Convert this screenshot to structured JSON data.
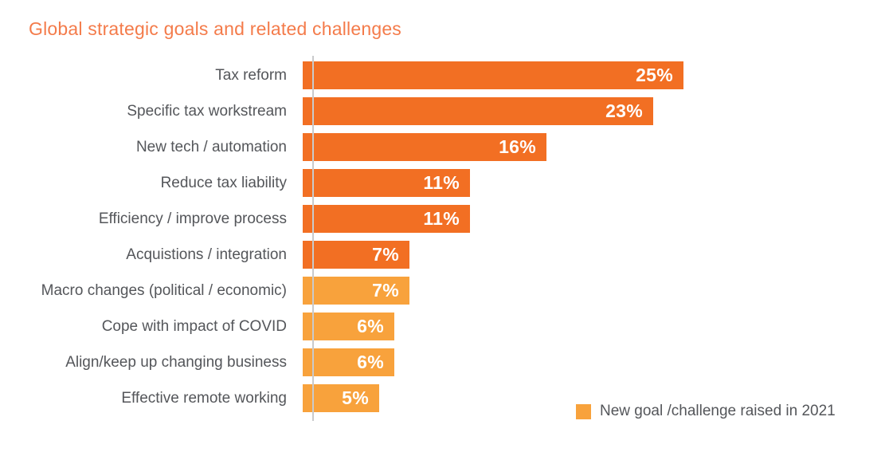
{
  "title": "Global strategic goals and related challenges",
  "title_color": "#F47B4A",
  "legend": {
    "label": "New goal /challenge raised in 2021",
    "swatch_color": "#F8A23C"
  },
  "chart_data": {
    "type": "bar",
    "orientation": "horizontal",
    "title": "Global strategic goals and related challenges",
    "categories": [
      "Tax reform",
      "Specific tax workstream",
      "New tech / automation",
      "Reduce tax liability",
      "Efficiency / improve process",
      "Acquistions / integration",
      "Macro changes (political / economic)",
      "Cope with impact of COVID",
      "Align/keep up changing business",
      "Effective remote working"
    ],
    "values": [
      25,
      23,
      16,
      11,
      11,
      7,
      7,
      6,
      6,
      5
    ],
    "value_labels": [
      "25%",
      "23%",
      "16%",
      "11%",
      "11%",
      "7%",
      "7%",
      "6%",
      "6%",
      "5%"
    ],
    "new_goal_2021": [
      false,
      false,
      false,
      false,
      false,
      false,
      true,
      true,
      true,
      true
    ],
    "xlim": [
      0,
      25
    ],
    "grid": false,
    "value_labels_inside_bars": true,
    "bar_colors": {
      "default": "#F26F23",
      "new_2021": "#F8A23C"
    },
    "axis_line_color": "#C9CACC",
    "label_color": "#54565A",
    "legend_position": "bottom-right",
    "legend_entries": [
      {
        "label": "New goal /challenge raised in 2021",
        "color": "#F8A23C"
      }
    ]
  }
}
